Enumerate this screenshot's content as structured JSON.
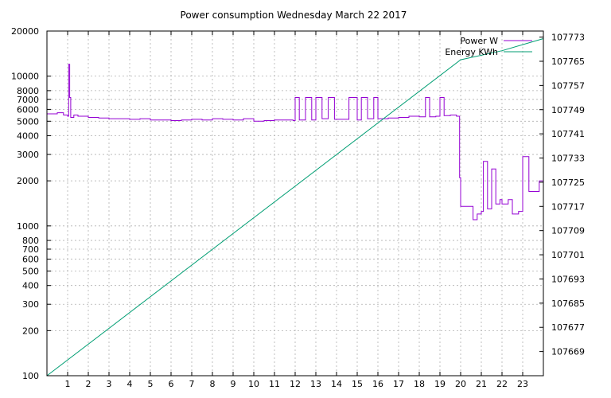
{
  "chart_data": {
    "type": "line",
    "title": "Power consumption Wednesday March 22 2017",
    "x_ticks": [
      "1",
      "2",
      "3",
      "4",
      "5",
      "6",
      "7",
      "8",
      "9",
      "10",
      "11",
      "12",
      "13",
      "14",
      "15",
      "16",
      "17",
      "18",
      "19",
      "20",
      "21",
      "22",
      "23"
    ],
    "xlim": [
      0,
      24
    ],
    "y_left": {
      "scale": "log",
      "lim": [
        100,
        20000
      ],
      "ticks": [
        100,
        200,
        300,
        400,
        500,
        600,
        700,
        800,
        1000,
        2000,
        3000,
        4000,
        5000,
        6000,
        7000,
        8000,
        10000,
        20000
      ],
      "tick_labels": [
        "100",
        "200",
        "300",
        "400",
        "500",
        "600",
        "700",
        "800",
        "1000",
        "2000",
        "3000",
        "4000",
        "5000",
        "6000",
        "7000",
        "8000",
        "10000",
        "20000"
      ]
    },
    "y_right": {
      "scale": "linear",
      "lim": [
        107661,
        107775
      ],
      "ticks": [
        107669,
        107677,
        107685,
        107693,
        107701,
        107709,
        107717,
        107725,
        107733,
        107741,
        107749,
        107757,
        107765,
        107773
      ],
      "tick_labels": [
        "107669",
        "107677",
        "107685",
        "107693",
        "107701",
        "107709",
        "107717",
        "107725",
        "107733",
        "107741",
        "107749",
        "107757",
        "107765",
        "107773"
      ]
    },
    "grid": true,
    "legend_position": "top-right",
    "series": [
      {
        "name": "Power W",
        "color": "#9400d3",
        "axis": "left",
        "x": [
          0,
          0.5,
          0.8,
          1.0,
          1.05,
          1.1,
          1.15,
          1.3,
          1.5,
          2.0,
          2.5,
          3.0,
          3.5,
          4.0,
          4.5,
          5.0,
          5.5,
          6.0,
          6.5,
          7.0,
          7.5,
          8.0,
          8.5,
          9.0,
          9.5,
          10.0,
          10.5,
          11.0,
          11.5,
          11.9,
          12.0,
          12.2,
          12.5,
          12.8,
          13.0,
          13.3,
          13.6,
          13.9,
          14.2,
          14.6,
          15.0,
          15.2,
          15.5,
          15.8,
          16.0,
          16.5,
          17.0,
          17.5,
          18.0,
          18.3,
          18.5,
          18.8,
          19.0,
          19.2,
          19.5,
          19.8,
          19.95,
          20.0,
          20.3,
          20.6,
          20.8,
          21.0,
          21.1,
          21.3,
          21.5,
          21.7,
          21.9,
          22.0,
          22.3,
          22.5,
          22.8,
          23.0,
          23.3,
          23.5,
          23.8,
          24.0
        ],
        "y": [
          5600,
          5700,
          5500,
          5400,
          12000,
          7200,
          5300,
          5500,
          5400,
          5300,
          5250,
          5200,
          5200,
          5150,
          5200,
          5100,
          5100,
          5050,
          5100,
          5150,
          5100,
          5200,
          5150,
          5100,
          5200,
          5000,
          5050,
          5100,
          5100,
          5050,
          7200,
          5100,
          7200,
          5100,
          7200,
          5200,
          7200,
          5150,
          5150,
          7200,
          5100,
          7200,
          5200,
          7200,
          5200,
          5250,
          5300,
          5400,
          5350,
          7200,
          5350,
          5400,
          7200,
          5450,
          5500,
          5400,
          2100,
          1350,
          1350,
          1100,
          1200,
          1250,
          2700,
          1300,
          2400,
          1400,
          1500,
          1400,
          1500,
          1200,
          1250,
          2900,
          1700,
          1700,
          2000,
          1700
        ]
      },
      {
        "name": "Energy KWh",
        "color": "#009e73",
        "axis": "right",
        "x": [
          0,
          20,
          22,
          24
        ],
        "y": [
          107661,
          107765.5,
          107768.5,
          107772.5
        ]
      }
    ]
  }
}
